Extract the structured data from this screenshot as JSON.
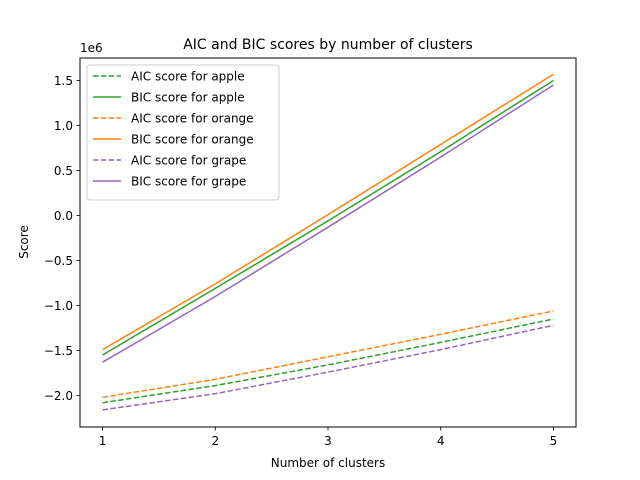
{
  "chart_data": {
    "type": "line",
    "title": "AIC and BIC scores by number of clusters",
    "xlabel": "Number of clusters",
    "ylabel": "Score",
    "y_offset_label": "1e6",
    "x": [
      1,
      2,
      3,
      4,
      5
    ],
    "xlim": [
      0.8,
      5.2
    ],
    "ylim": [
      -2.35,
      1.75
    ],
    "x_ticks": [
      1,
      2,
      3,
      4,
      5
    ],
    "x_tick_labels": [
      "1",
      "2",
      "3",
      "4",
      "5"
    ],
    "y_ticks": [
      -2.0,
      -1.5,
      -1.0,
      -0.5,
      0.0,
      0.5,
      1.0,
      1.5
    ],
    "y_tick_labels": [
      "−2.0",
      "−1.5",
      "−1.0",
      "−0.5",
      "0.0",
      "0.5",
      "1.0",
      "1.5"
    ],
    "grid": false,
    "legend_position": "top-left",
    "series": [
      {
        "name": "AIC score for apple",
        "style": "dashed",
        "color": "#2ca02c",
        "values": [
          -2.08,
          -1.89,
          -1.66,
          -1.41,
          -1.15
        ]
      },
      {
        "name": "BIC score for apple",
        "style": "solid",
        "color": "#2ca02c",
        "values": [
          -1.55,
          -0.81,
          -0.06,
          0.71,
          1.5
        ]
      },
      {
        "name": "AIC score for orange",
        "style": "dashed",
        "color": "#ff7f0e",
        "values": [
          -2.02,
          -1.82,
          -1.57,
          -1.32,
          -1.06
        ]
      },
      {
        "name": "BIC score for orange",
        "style": "solid",
        "color": "#ff7f0e",
        "values": [
          -1.49,
          -0.76,
          0.01,
          0.79,
          1.57
        ]
      },
      {
        "name": "AIC score for grape",
        "style": "dashed",
        "color": "#9467bd",
        "values": [
          -2.16,
          -1.98,
          -1.74,
          -1.49,
          -1.22
        ]
      },
      {
        "name": "BIC score for grape",
        "style": "solid",
        "color": "#9467bd",
        "values": [
          -1.63,
          -0.9,
          -0.13,
          0.65,
          1.45
        ]
      }
    ]
  }
}
